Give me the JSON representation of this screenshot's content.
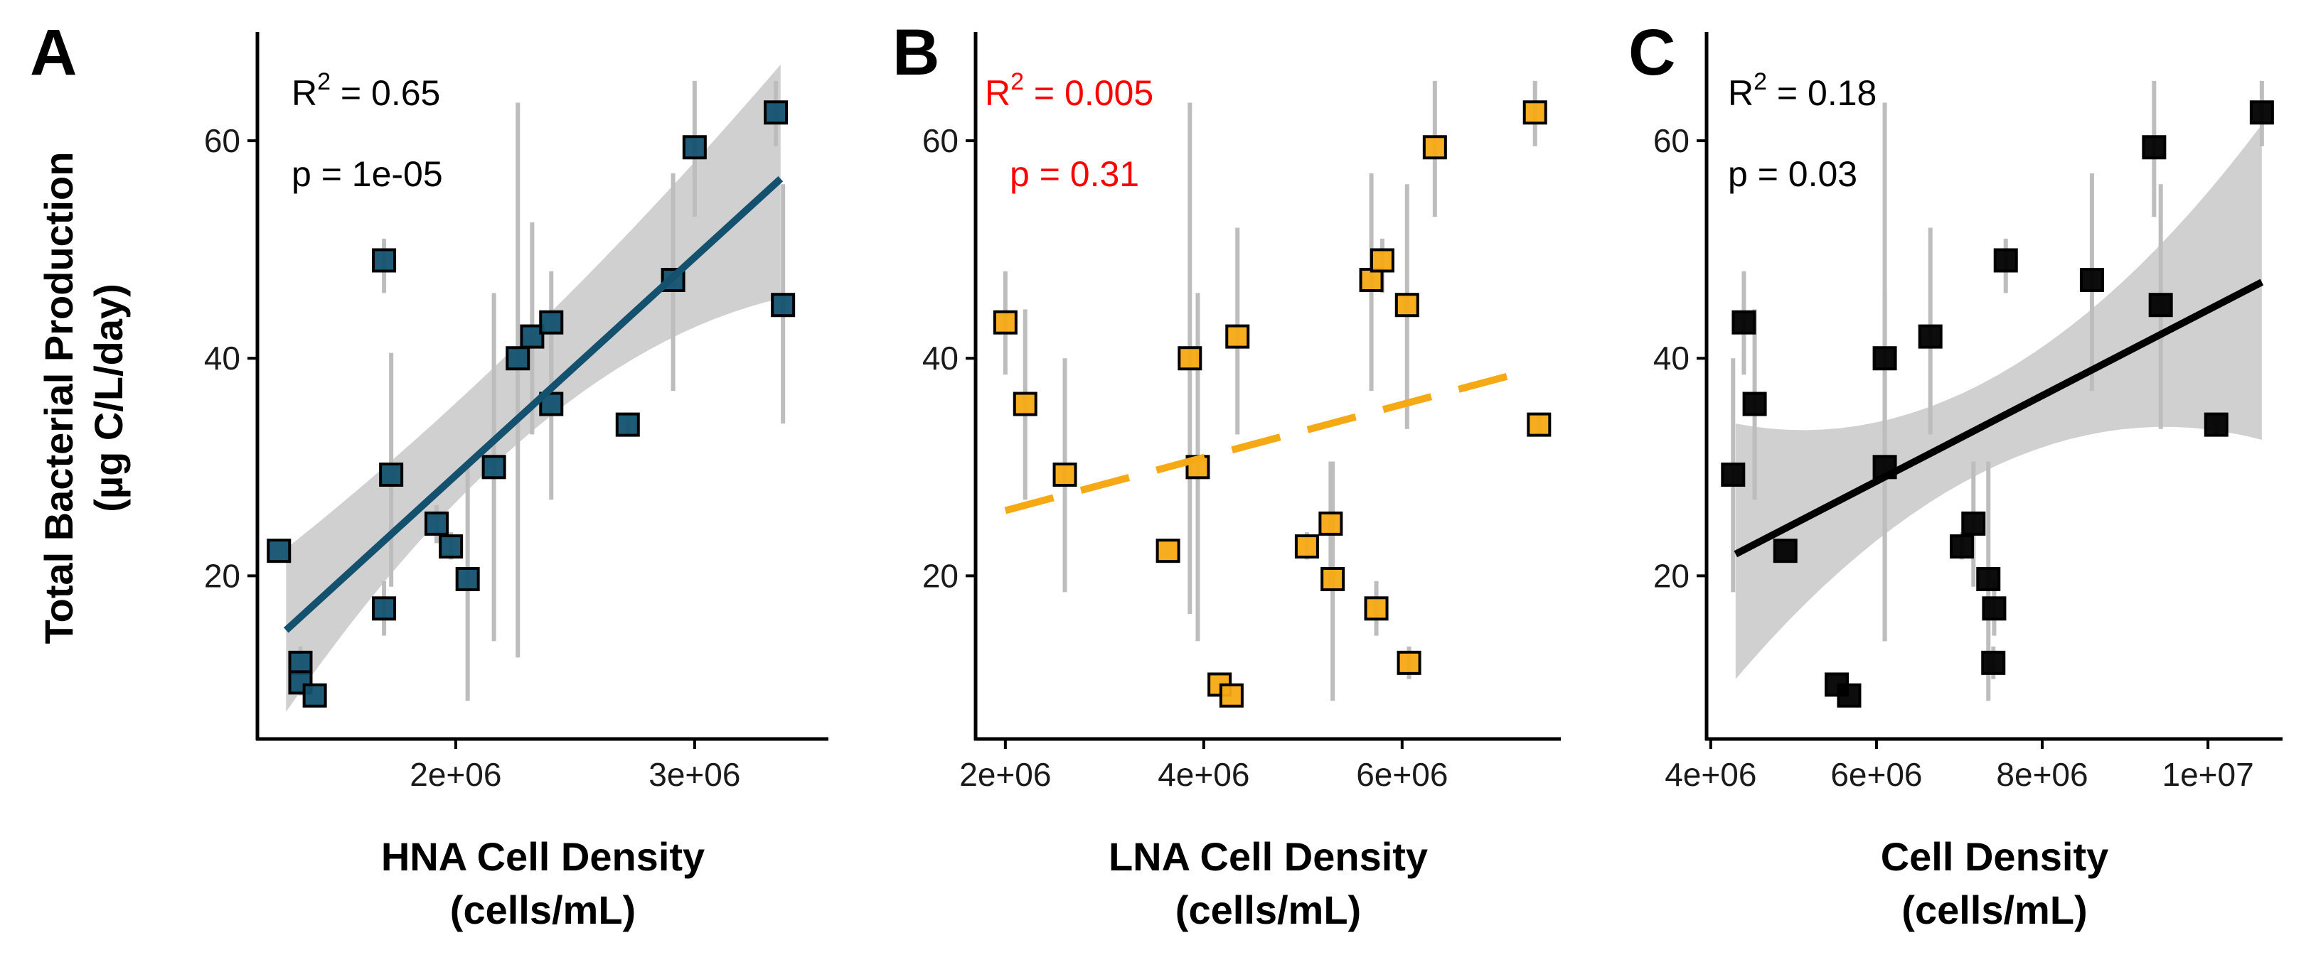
{
  "figure": {
    "y_title_line1": "Total Bacterial Production",
    "y_title_line2": "(µg C/L/day)"
  },
  "chart_data": [
    {
      "panel": "A",
      "type": "scatter",
      "xlabel_line1": "HNA Cell Density",
      "xlabel_line2": "(cells/mL)",
      "ylabel": "Total Bacterial Production (µg C/L/day)",
      "stat_r2_label": "R",
      "stat_r2_value": " = 0.65",
      "stat_p": "p = 1e-05",
      "stat_color": "#000000",
      "point_color": "#13516f",
      "line_color": "#13516f",
      "line_style": "solid",
      "xlim": [
        1170000,
        3560000
      ],
      "ylim": [
        5,
        70
      ],
      "xticks": [
        2000000,
        3000000
      ],
      "xtick_labels": [
        "2e+06",
        "3e+06"
      ],
      "yticks": [
        20,
        40,
        60
      ],
      "ytick_labels": [
        "20",
        "40",
        "60"
      ],
      "fit": {
        "x0": 1290000,
        "y0": 15.0,
        "x1": 3360000,
        "y1": 56.5,
        "band_lo0": 7.5,
        "band_hi0": 22.5,
        "band_lo_mid": 31,
        "band_hi_mid": 40,
        "x_mid": 2200000,
        "band_lo1": 45.5,
        "band_hi1": 67
      },
      "points": [
        {
          "x": 1260000,
          "y": 22.3,
          "ylo": 22.3,
          "yhi": 22.3
        },
        {
          "x": 1350000,
          "y": 12.0,
          "ylo": 10.5,
          "yhi": 13.5
        },
        {
          "x": 1350000,
          "y": 10.2,
          "ylo": 9.0,
          "yhi": 11.5
        },
        {
          "x": 1410000,
          "y": 9.0,
          "ylo": 9.0,
          "yhi": 9.0
        },
        {
          "x": 1700000,
          "y": 49.0,
          "ylo": 46.0,
          "yhi": 51.0
        },
        {
          "x": 1700000,
          "y": 17.0,
          "ylo": 14.5,
          "yhi": 19.5
        },
        {
          "x": 1730000,
          "y": 29.3,
          "ylo": 19.0,
          "yhi": 40.5
        },
        {
          "x": 1920000,
          "y": 24.8,
          "ylo": 23.0,
          "yhi": 26.5
        },
        {
          "x": 1980000,
          "y": 22.7,
          "ylo": 21.5,
          "yhi": 24.0
        },
        {
          "x": 2050000,
          "y": 19.7,
          "ylo": 8.5,
          "yhi": 30.5
        },
        {
          "x": 2160000,
          "y": 30.0,
          "ylo": 14.0,
          "yhi": 46.0
        },
        {
          "x": 2260000,
          "y": 40.0,
          "ylo": 12.5,
          "yhi": 63.5
        },
        {
          "x": 2320000,
          "y": 42.0,
          "ylo": 33.0,
          "yhi": 52.5
        },
        {
          "x": 2400000,
          "y": 43.3,
          "ylo": 38.5,
          "yhi": 48.0
        },
        {
          "x": 2400000,
          "y": 35.8,
          "ylo": 27.0,
          "yhi": 44.5
        },
        {
          "x": 2720000,
          "y": 33.9,
          "ylo": 33.0,
          "yhi": 35.0
        },
        {
          "x": 2910000,
          "y": 47.2,
          "ylo": 37.0,
          "yhi": 57.0
        },
        {
          "x": 3000000,
          "y": 59.4,
          "ylo": 53.0,
          "yhi": 65.5
        },
        {
          "x": 3340000,
          "y": 62.6,
          "ylo": 59.5,
          "yhi": 65.5
        },
        {
          "x": 3370000,
          "y": 44.9,
          "ylo": 34.0,
          "yhi": 56.0
        }
      ]
    },
    {
      "panel": "B",
      "type": "scatter",
      "xlabel_line1": "LNA Cell Density",
      "xlabel_line2": "(cells/mL)",
      "ylabel": "Total Bacterial Production (µg C/L/day)",
      "stat_r2_label": "R",
      "stat_r2_value": " = 0.005",
      "stat_p": "p = 0.31",
      "stat_color": "#ff0000",
      "point_color": "#f5a914",
      "line_color": "#f5a914",
      "line_style": "dashed",
      "xlim": [
        1700000,
        7600000
      ],
      "ylim": [
        5,
        70
      ],
      "xticks": [
        2000000,
        4000000,
        6000000
      ],
      "xtick_labels": [
        "2e+06",
        "4e+06",
        "6e+06"
      ],
      "yticks": [
        20,
        40,
        60
      ],
      "ytick_labels": [
        "20",
        "40",
        "60"
      ],
      "fit": {
        "x0": 2000000,
        "y0": 26.0,
        "x1": 7330000,
        "y1": 39.0
      },
      "points": [
        {
          "x": 2000000,
          "y": 43.3,
          "ylo": 38.5,
          "yhi": 48.0
        },
        {
          "x": 2200000,
          "y": 35.8,
          "ylo": 27.0,
          "yhi": 44.5
        },
        {
          "x": 2600000,
          "y": 29.3,
          "ylo": 18.5,
          "yhi": 40.0
        },
        {
          "x": 3640000,
          "y": 22.3,
          "ylo": 22.3,
          "yhi": 22.3
        },
        {
          "x": 3860000,
          "y": 40.0,
          "ylo": 16.5,
          "yhi": 63.5
        },
        {
          "x": 3940000,
          "y": 30.0,
          "ylo": 14.0,
          "yhi": 46.0
        },
        {
          "x": 4160000,
          "y": 10.0,
          "ylo": 10.0,
          "yhi": 10.0
        },
        {
          "x": 4280000,
          "y": 9.0,
          "ylo": 9.0,
          "yhi": 9.0
        },
        {
          "x": 4340000,
          "y": 42.0,
          "ylo": 33.0,
          "yhi": 52.0
        },
        {
          "x": 5040000,
          "y": 22.7,
          "ylo": 21.5,
          "yhi": 24.0
        },
        {
          "x": 5280000,
          "y": 24.8,
          "ylo": 19.0,
          "yhi": 30.5
        },
        {
          "x": 5300000,
          "y": 19.7,
          "ylo": 8.5,
          "yhi": 30.5
        },
        {
          "x": 5690000,
          "y": 47.2,
          "ylo": 37.0,
          "yhi": 57.0
        },
        {
          "x": 5740000,
          "y": 17.0,
          "ylo": 14.5,
          "yhi": 19.5
        },
        {
          "x": 5800000,
          "y": 49.0,
          "ylo": 46.0,
          "yhi": 51.0
        },
        {
          "x": 6050000,
          "y": 44.9,
          "ylo": 33.5,
          "yhi": 56.0
        },
        {
          "x": 6070000,
          "y": 12.0,
          "ylo": 10.5,
          "yhi": 13.5
        },
        {
          "x": 6330000,
          "y": 59.4,
          "ylo": 53.0,
          "yhi": 65.5
        },
        {
          "x": 7340000,
          "y": 62.6,
          "ylo": 59.5,
          "yhi": 65.5
        },
        {
          "x": 7380000,
          "y": 33.9,
          "ylo": 33.0,
          "yhi": 35.0
        }
      ]
    },
    {
      "panel": "C",
      "type": "scatter",
      "xlabel_line1": "Cell Density",
      "xlabel_line2": "(cells/mL)",
      "ylabel": "Total Bacterial Production (µg C/L/day)",
      "stat_r2_label": "R",
      "stat_r2_value": " = 0.18",
      "stat_p": "p = 0.03",
      "stat_color": "#000000",
      "point_color": "#000000",
      "line_color": "#000000",
      "line_style": "solid",
      "xlim": [
        3950000,
        10900000
      ],
      "ylim": [
        5,
        70
      ],
      "xticks": [
        4000000,
        6000000,
        8000000,
        10000000
      ],
      "xtick_labels": [
        "4e+06",
        "6e+06",
        "8e+06",
        "1e+07"
      ],
      "yticks": [
        20,
        40,
        60
      ],
      "ytick_labels": [
        "20",
        "40",
        "60"
      ],
      "fit": {
        "x0": 4300000,
        "y0": 22.0,
        "x1": 10650000,
        "y1": 47.0,
        "band_lo0": 10.5,
        "band_hi0": 34.0,
        "band_lo_mid": 27.5,
        "band_hi_mid": 36.0,
        "x_mid": 6800000,
        "band_lo1": 32.5,
        "band_hi1": 61.5
      },
      "points": [
        {
          "x": 4270000,
          "y": 29.3,
          "ylo": 18.5,
          "yhi": 40.0
        },
        {
          "x": 4400000,
          "y": 43.3,
          "ylo": 38.5,
          "yhi": 48.0
        },
        {
          "x": 4530000,
          "y": 35.8,
          "ylo": 27.0,
          "yhi": 44.5
        },
        {
          "x": 4900000,
          "y": 22.3,
          "ylo": 22.3,
          "yhi": 22.3
        },
        {
          "x": 5520000,
          "y": 10.0,
          "ylo": 10.0,
          "yhi": 10.0
        },
        {
          "x": 5670000,
          "y": 9.0,
          "ylo": 9.0,
          "yhi": 9.0
        },
        {
          "x": 6100000,
          "y": 40.0,
          "ylo": 14.0,
          "yhi": 63.5
        },
        {
          "x": 6100000,
          "y": 30.0,
          "ylo": 14.0,
          "yhi": 46.0
        },
        {
          "x": 6650000,
          "y": 42.0,
          "ylo": 33.0,
          "yhi": 52.0
        },
        {
          "x": 7030000,
          "y": 22.7,
          "ylo": 21.5,
          "yhi": 24.0
        },
        {
          "x": 7170000,
          "y": 24.8,
          "ylo": 19.0,
          "yhi": 30.5
        },
        {
          "x": 7350000,
          "y": 19.7,
          "ylo": 8.5,
          "yhi": 30.5
        },
        {
          "x": 7410000,
          "y": 12.0,
          "ylo": 10.5,
          "yhi": 13.5
        },
        {
          "x": 7420000,
          "y": 17.0,
          "ylo": 14.5,
          "yhi": 19.5
        },
        {
          "x": 7560000,
          "y": 49.0,
          "ylo": 46.0,
          "yhi": 51.0
        },
        {
          "x": 8600000,
          "y": 47.2,
          "ylo": 37.0,
          "yhi": 57.0
        },
        {
          "x": 9350000,
          "y": 59.4,
          "ylo": 53.0,
          "yhi": 65.5
        },
        {
          "x": 9430000,
          "y": 44.9,
          "ylo": 33.5,
          "yhi": 56.0
        },
        {
          "x": 10100000,
          "y": 33.9,
          "ylo": 33.0,
          "yhi": 35.0
        },
        {
          "x": 10650000,
          "y": 62.6,
          "ylo": 59.5,
          "yhi": 65.5
        }
      ]
    }
  ]
}
